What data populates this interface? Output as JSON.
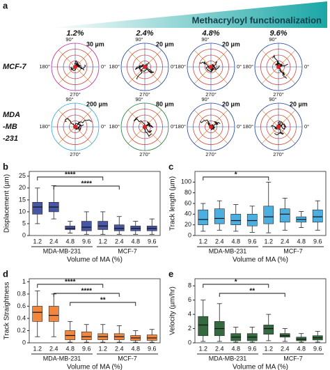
{
  "panel_a": {
    "label": "a",
    "header": "Methacryloyl functionalization",
    "columns": [
      "1.2%",
      "2.4%",
      "4.8%",
      "9.6%"
    ],
    "angles": {
      "top": "90°",
      "left": "180°",
      "right": "0°",
      "bottom": "270°"
    },
    "rows": [
      {
        "name": [
          "MCF-7"
        ],
        "scales": [
          {
            "text": "30 µm",
            "color": "#c0249a"
          },
          {
            "text": "20 µm",
            "color": "#1d3f9e"
          },
          {
            "text": "20 µm",
            "color": "#1d3f9e"
          },
          {
            "color": "#1d3f9e"
          }
        ]
      },
      {
        "name": [
          "MDA",
          "-MB",
          "-231"
        ],
        "scales": [
          {
            "text": "200 µm",
            "color": "#2aa9d8"
          },
          {
            "text": "80 µm",
            "color": "#1f7a3a"
          },
          {
            "text": "20 µm",
            "color": "#1d3f9e"
          },
          {
            "text": "20 µm",
            "color": "#1d3f9e"
          }
        ]
      }
    ]
  },
  "chart_data": [
    {
      "type": "box",
      "label": "b",
      "ylabel": "Displacement (µm)",
      "xlabel": "Volume of MA (%)",
      "color": "#34449c",
      "categories": [
        "1.2",
        "2.4",
        "4.8",
        "9.6",
        "1.2",
        "2.4",
        "4.8",
        "9.6"
      ],
      "groups": [
        "MDA-MB-231",
        "MCF-7"
      ],
      "ylim": [
        0,
        27
      ],
      "yticks": [
        0,
        5,
        10,
        15,
        20,
        25
      ],
      "boxes": [
        {
          "whislo": 5,
          "q1": 9,
          "med": 12,
          "q3": 14,
          "whishi": 20
        },
        {
          "whislo": 7,
          "q1": 10,
          "med": 12,
          "q3": 14,
          "whishi": 21
        },
        {
          "whislo": 1,
          "q1": 2.5,
          "med": 3,
          "q3": 4,
          "whishi": 6
        },
        {
          "whislo": 0.5,
          "q1": 2,
          "med": 3.5,
          "q3": 6,
          "whishi": 10
        },
        {
          "whislo": 0.5,
          "q1": 2.5,
          "med": 4,
          "q3": 6,
          "whishi": 10
        },
        {
          "whislo": 0.5,
          "q1": 2,
          "med": 3,
          "q3": 4.5,
          "whishi": 8
        },
        {
          "whislo": 0.5,
          "q1": 2,
          "med": 3,
          "q3": 4,
          "whishi": 6
        },
        {
          "whislo": 0.5,
          "q1": 2,
          "med": 3,
          "q3": 4,
          "whishi": 7
        }
      ],
      "brackets": [
        {
          "label": "****",
          "from": 0,
          "to": 4
        },
        {
          "label": "****",
          "from": 1,
          "to": 5
        }
      ]
    },
    {
      "type": "box",
      "label": "c",
      "ylabel": "Track length (µm)",
      "xlabel": "Volume of MA (%)",
      "color": "#3aa6dc",
      "categories": [
        "1.2",
        "2.4",
        "4.8",
        "9.6",
        "1.2",
        "2.4",
        "4.8",
        "9.6"
      ],
      "groups": [
        "MDA-MB-231",
        "MCF-7"
      ],
      "ylim": [
        0,
        120
      ],
      "yticks": [
        0,
        20,
        40,
        60,
        80,
        100
      ],
      "boxes": [
        {
          "whislo": 8,
          "q1": 20,
          "med": 30,
          "q3": 48,
          "whishi": 60
        },
        {
          "whislo": 10,
          "q1": 22,
          "med": 32,
          "q3": 50,
          "whishi": 65
        },
        {
          "whislo": 8,
          "q1": 20,
          "med": 28,
          "q3": 40,
          "whishi": 58
        },
        {
          "whislo": 6,
          "q1": 18,
          "med": 28,
          "q3": 40,
          "whishi": 55
        },
        {
          "whislo": 5,
          "q1": 22,
          "med": 35,
          "q3": 55,
          "whishi": 100
        },
        {
          "whislo": 10,
          "q1": 25,
          "med": 40,
          "q3": 50,
          "whishi": 70
        },
        {
          "whislo": 15,
          "q1": 25,
          "med": 30,
          "q3": 35,
          "whishi": 45
        },
        {
          "whislo": 10,
          "q1": 25,
          "med": 35,
          "q3": 48,
          "whishi": 65
        }
      ],
      "brackets": [
        {
          "label": "*",
          "from": 0,
          "to": 4
        }
      ]
    },
    {
      "type": "box",
      "label": "d",
      "ylabel": "Track Straightness",
      "xlabel": "Volume of MA (%)",
      "color": "#f07a2a",
      "categories": [
        "1.2",
        "2.4",
        "4.8",
        "9.6",
        "1.2",
        "2.4",
        "4.8",
        "9.6"
      ],
      "groups": [
        "MDA-MB-231",
        "MCF-7"
      ],
      "ylim": [
        0,
        1.05
      ],
      "yticks": [
        0,
        0.2,
        0.4,
        0.6,
        0.8,
        1
      ],
      "boxes": [
        {
          "whislo": 0.1,
          "q1": 0.35,
          "med": 0.5,
          "q3": 0.6,
          "whishi": 0.85
        },
        {
          "whislo": 0.1,
          "q1": 0.35,
          "med": 0.45,
          "q3": 0.6,
          "whishi": 0.8
        },
        {
          "whislo": 0.01,
          "q1": 0.05,
          "med": 0.12,
          "q3": 0.2,
          "whishi": 0.35
        },
        {
          "whislo": 0.01,
          "q1": 0.05,
          "med": 0.1,
          "q3": 0.18,
          "whishi": 0.3
        },
        {
          "whislo": 0.01,
          "q1": 0.05,
          "med": 0.1,
          "q3": 0.15,
          "whishi": 0.3
        },
        {
          "whislo": 0.01,
          "q1": 0.05,
          "med": 0.1,
          "q3": 0.15,
          "whishi": 0.28
        },
        {
          "whislo": 0.01,
          "q1": 0.04,
          "med": 0.08,
          "q3": 0.12,
          "whishi": 0.2
        },
        {
          "whislo": 0.01,
          "q1": 0.04,
          "med": 0.08,
          "q3": 0.13,
          "whishi": 0.22
        }
      ],
      "brackets": [
        {
          "label": "****",
          "from": 0,
          "to": 4
        },
        {
          "label": "****",
          "from": 1,
          "to": 5
        },
        {
          "label": "**",
          "from": 2,
          "to": 6
        }
      ]
    },
    {
      "type": "box",
      "label": "e",
      "ylabel": "Velocity (µm/hr)",
      "xlabel": "Volume of MA (%)",
      "color": "#1e5a2a",
      "categories": [
        "1.2",
        "2.4",
        "4.8",
        "9.6",
        "1.2",
        "2.4",
        "4.8",
        "9.6"
      ],
      "groups": [
        "MDA-MB-231",
        "MCF-7"
      ],
      "ylim": [
        0,
        9
      ],
      "yticks": [
        0,
        2,
        4,
        6,
        8
      ],
      "boxes": [
        {
          "whislo": 0.2,
          "q1": 1,
          "med": 2.5,
          "q3": 3.7,
          "whishi": 6
        },
        {
          "whislo": 0.2,
          "q1": 1,
          "med": 2,
          "q3": 3,
          "whishi": 5.5
        },
        {
          "whislo": 0.1,
          "q1": 0.3,
          "med": 0.8,
          "q3": 1.3,
          "whishi": 2.2
        },
        {
          "whislo": 0.1,
          "q1": 0.3,
          "med": 0.8,
          "q3": 1.3,
          "whishi": 2.2
        },
        {
          "whislo": 0.3,
          "q1": 1.2,
          "med": 2,
          "q3": 2.5,
          "whishi": 4
        },
        {
          "whislo": 0.2,
          "q1": 0.8,
          "med": 1,
          "q3": 1.3,
          "whishi": 2
        },
        {
          "whislo": 0.1,
          "q1": 0.3,
          "med": 0.5,
          "q3": 0.8,
          "whishi": 1.3
        },
        {
          "whislo": 0.1,
          "q1": 0.4,
          "med": 0.7,
          "q3": 1,
          "whishi": 1.6
        }
      ],
      "brackets": [
        {
          "label": "*",
          "from": 0,
          "to": 4
        },
        {
          "label": "**",
          "from": 1,
          "to": 5
        }
      ]
    }
  ]
}
